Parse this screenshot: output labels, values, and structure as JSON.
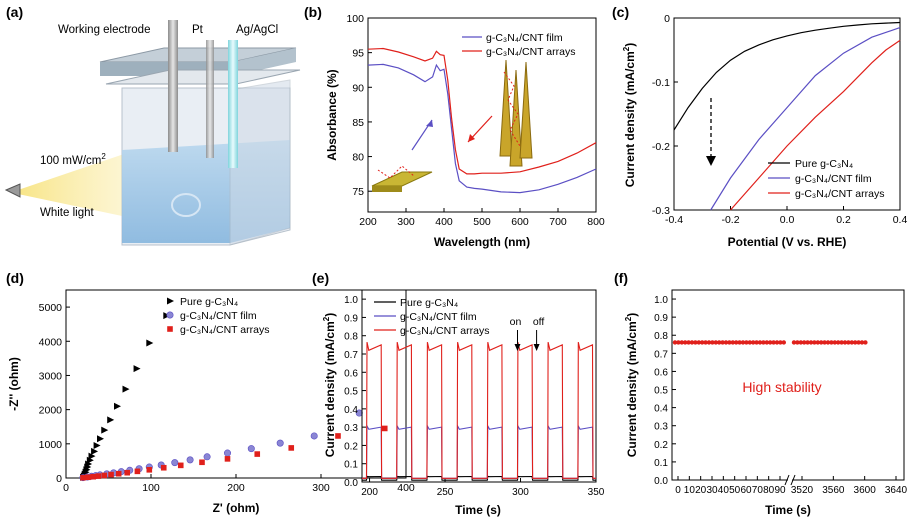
{
  "panel_labels": {
    "a": "(a)",
    "b": "(b)",
    "c": "(c)",
    "d": "(d)",
    "e": "(e)",
    "f": "(f)"
  },
  "illustration": {
    "working_electrode": "Working electrode",
    "pt": "Pt",
    "ag_agcl": "Ag/AgCl",
    "power": "100 mW/cm",
    "power_sup": "2",
    "light": "White light"
  },
  "colors": {
    "pure": "#000000",
    "film": "#5b4fc4",
    "arrays": "#e0201b"
  },
  "chart_data": [
    {
      "panel": "b",
      "type": "line",
      "xlabel": "Wavelength (nm)",
      "ylabel": "Absorbance (%)",
      "xlim": [
        200,
        800
      ],
      "ylim": [
        72,
        100
      ],
      "xticks": [
        "200",
        "300",
        "400",
        "500",
        "600",
        "700",
        "800"
      ],
      "yticks": [
        "75",
        "80",
        "85",
        "90",
        "95",
        "100"
      ],
      "legend": [
        "g-C3N4/CNT film",
        "g-C3N4/CNT arrays"
      ],
      "series": [
        {
          "name": "g-C3N4/CNT film",
          "x": [
            200,
            240,
            280,
            320,
            350,
            370,
            380,
            390,
            400,
            410,
            420,
            430,
            440,
            460,
            480,
            500,
            550,
            600,
            650,
            700,
            750,
            800
          ],
          "y": [
            93.2,
            93.3,
            92.8,
            91.8,
            90.8,
            91.5,
            93.2,
            92.4,
            92.6,
            89,
            84,
            79,
            76.5,
            75.6,
            75.4,
            75.3,
            74.9,
            74.8,
            75.2,
            76,
            77,
            78.2
          ]
        },
        {
          "name": "g-C3N4/CNT arrays",
          "x": [
            200,
            240,
            280,
            320,
            350,
            370,
            380,
            390,
            400,
            410,
            420,
            430,
            440,
            460,
            480,
            500,
            550,
            600,
            650,
            700,
            750,
            800
          ],
          "y": [
            95.5,
            95.6,
            95.1,
            94.4,
            93.8,
            94.2,
            95.2,
            94.7,
            94.6,
            91,
            85.5,
            81,
            78.2,
            77.5,
            77.5,
            77.6,
            77.6,
            77.8,
            78.5,
            79.3,
            80.5,
            82
          ]
        }
      ]
    },
    {
      "panel": "c",
      "type": "line",
      "xlabel": "Potential (V vs. RHE)",
      "ylabel": "Current density (mA/cm",
      "ylabel_sup": "2",
      "ylabel_end": ")",
      "xlim": [
        -0.4,
        0.4
      ],
      "ylim": [
        -0.3,
        0
      ],
      "xticks": [
        "-0.4",
        "-0.2",
        "0.0",
        "0.2",
        "0.4"
      ],
      "yticks": [
        "0",
        "-0.1",
        "-0.2",
        "-0.3"
      ],
      "legend": [
        "Pure g-C3N4",
        "g-C3N4/CNT film",
        "g-C3N4/CNT arrays"
      ],
      "series": [
        {
          "name": "Pure g-C3N4",
          "x": [
            -0.4,
            -0.35,
            -0.3,
            -0.25,
            -0.2,
            -0.15,
            -0.1,
            -0.05,
            0,
            0.05,
            0.1,
            0.15,
            0.2,
            0.25,
            0.3,
            0.35,
            0.4
          ],
          "y": [
            -0.175,
            -0.14,
            -0.11,
            -0.085,
            -0.066,
            -0.052,
            -0.042,
            -0.034,
            -0.028,
            -0.023,
            -0.019,
            -0.016,
            -0.013,
            -0.011,
            -0.009,
            -0.008,
            -0.007
          ]
        },
        {
          "name": "g-C3N4/CNT film",
          "x": [
            -0.27,
            -0.2,
            -0.1,
            0,
            0.1,
            0.2,
            0.3,
            0.4
          ],
          "y": [
            -0.3,
            -0.25,
            -0.19,
            -0.14,
            -0.09,
            -0.055,
            -0.03,
            -0.015
          ]
        },
        {
          "name": "g-C3N4/CNT arrays",
          "x": [
            -0.2,
            -0.1,
            0,
            0.1,
            0.2,
            0.3,
            0.35,
            0.4
          ],
          "y": [
            -0.3,
            -0.25,
            -0.2,
            -0.155,
            -0.115,
            -0.07,
            -0.05,
            -0.035
          ]
        }
      ]
    },
    {
      "panel": "d",
      "type": "scatter",
      "xlabel": "Z' (ohm)",
      "ylabel": "-Z'' (ohm)",
      "xlim": [
        0,
        400
      ],
      "ylim": [
        0,
        5500
      ],
      "xticks": [
        "0",
        "100",
        "200",
        "300",
        "400"
      ],
      "yticks": [
        "0",
        "1000",
        "2000",
        "3000",
        "4000",
        "5000"
      ],
      "legend": [
        "Pure g-C3N4",
        "g-C3N4/CNT film",
        "g-C3N4/CNT arrays"
      ],
      "series": [
        {
          "name": "Pure g-C3N4",
          "marker": "triangle",
          "x": [
            20,
            21,
            22,
            23,
            24,
            25,
            26,
            28,
            30,
            33,
            36,
            40,
            45,
            52,
            60,
            70,
            83,
            98,
            118
          ],
          "y": [
            20,
            60,
            110,
            170,
            240,
            320,
            410,
            520,
            640,
            780,
            950,
            1150,
            1400,
            1700,
            2100,
            2600,
            3200,
            3950,
            4750
          ]
        },
        {
          "name": "g-C3N4/CNT film",
          "marker": "circle",
          "x": [
            20,
            25,
            30,
            35,
            40,
            48,
            56,
            65,
            75,
            86,
            98,
            112,
            128,
            146,
            166,
            190,
            218,
            252,
            292,
            345
          ],
          "y": [
            10,
            30,
            50,
            70,
            90,
            120,
            150,
            185,
            225,
            270,
            320,
            380,
            450,
            530,
            620,
            730,
            860,
            1020,
            1230,
            1900
          ]
        },
        {
          "name": "g-C3N4/CNT arrays",
          "marker": "square",
          "x": [
            20,
            26,
            32,
            38,
            45,
            53,
            62,
            72,
            84,
            98,
            115,
            135,
            160,
            190,
            225,
            265,
            320,
            375
          ],
          "y": [
            8,
            22,
            38,
            55,
            75,
            100,
            125,
            155,
            195,
            240,
            300,
            370,
            460,
            560,
            700,
            880,
            1230,
            1450
          ]
        }
      ]
    },
    {
      "panel": "e",
      "type": "line",
      "xlabel": "Time (s)",
      "ylabel": "Current density (mA/cm",
      "ylabel_sup": "2",
      "ylabel_end": ")",
      "xlim": [
        195,
        350
      ],
      "ylim": [
        0,
        1.05
      ],
      "xticks": [
        "200",
        "250",
        "300",
        "350"
      ],
      "yticks": [
        "0.0",
        "0.1",
        "0.2",
        "0.3",
        "0.4",
        "0.5",
        "0.6",
        "0.7",
        "0.8",
        "0.9",
        "1.0"
      ],
      "legend": [
        "Pure g-C3N4",
        "g-C3N4/CNT film",
        "g-C3N4/CNT arrays"
      ],
      "annotation_on": "on",
      "annotation_off": "off",
      "cycle_on_starts": [
        198,
        218,
        238,
        258,
        278,
        298,
        318,
        338
      ],
      "cycle_on_duration": 10,
      "on_level": [
        0.03,
        0.3,
        0.75
      ],
      "off_level": [
        0.01,
        0.02,
        0.02
      ],
      "series": [
        {
          "name": "Pure g-C3N4",
          "on": 0.03,
          "off": 0.01
        },
        {
          "name": "g-C3N4/CNT film",
          "on": 0.3,
          "off": 0.02
        },
        {
          "name": "g-C3N4/CNT arrays",
          "on": 0.75,
          "off": 0.02
        }
      ]
    },
    {
      "panel": "f",
      "type": "scatter",
      "xlabel": "Time (s)",
      "ylabel": "Current density (mA/cm",
      "ylabel_sup": "2",
      "ylabel_end": ")",
      "ylim": [
        0,
        1.05
      ],
      "xticks_left": [
        "0",
        "10",
        "20",
        "30",
        "40",
        "50",
        "60",
        "70",
        "80",
        "90"
      ],
      "xticks_right": [
        "3520",
        "3560",
        "3600",
        "3640"
      ],
      "yticks": [
        "0.0",
        "0.1",
        "0.2",
        "0.3",
        "0.4",
        "0.5",
        "0.6",
        "0.7",
        "0.8",
        "0.9",
        "1.0"
      ],
      "level": 0.76,
      "annotation": "High stability"
    }
  ]
}
